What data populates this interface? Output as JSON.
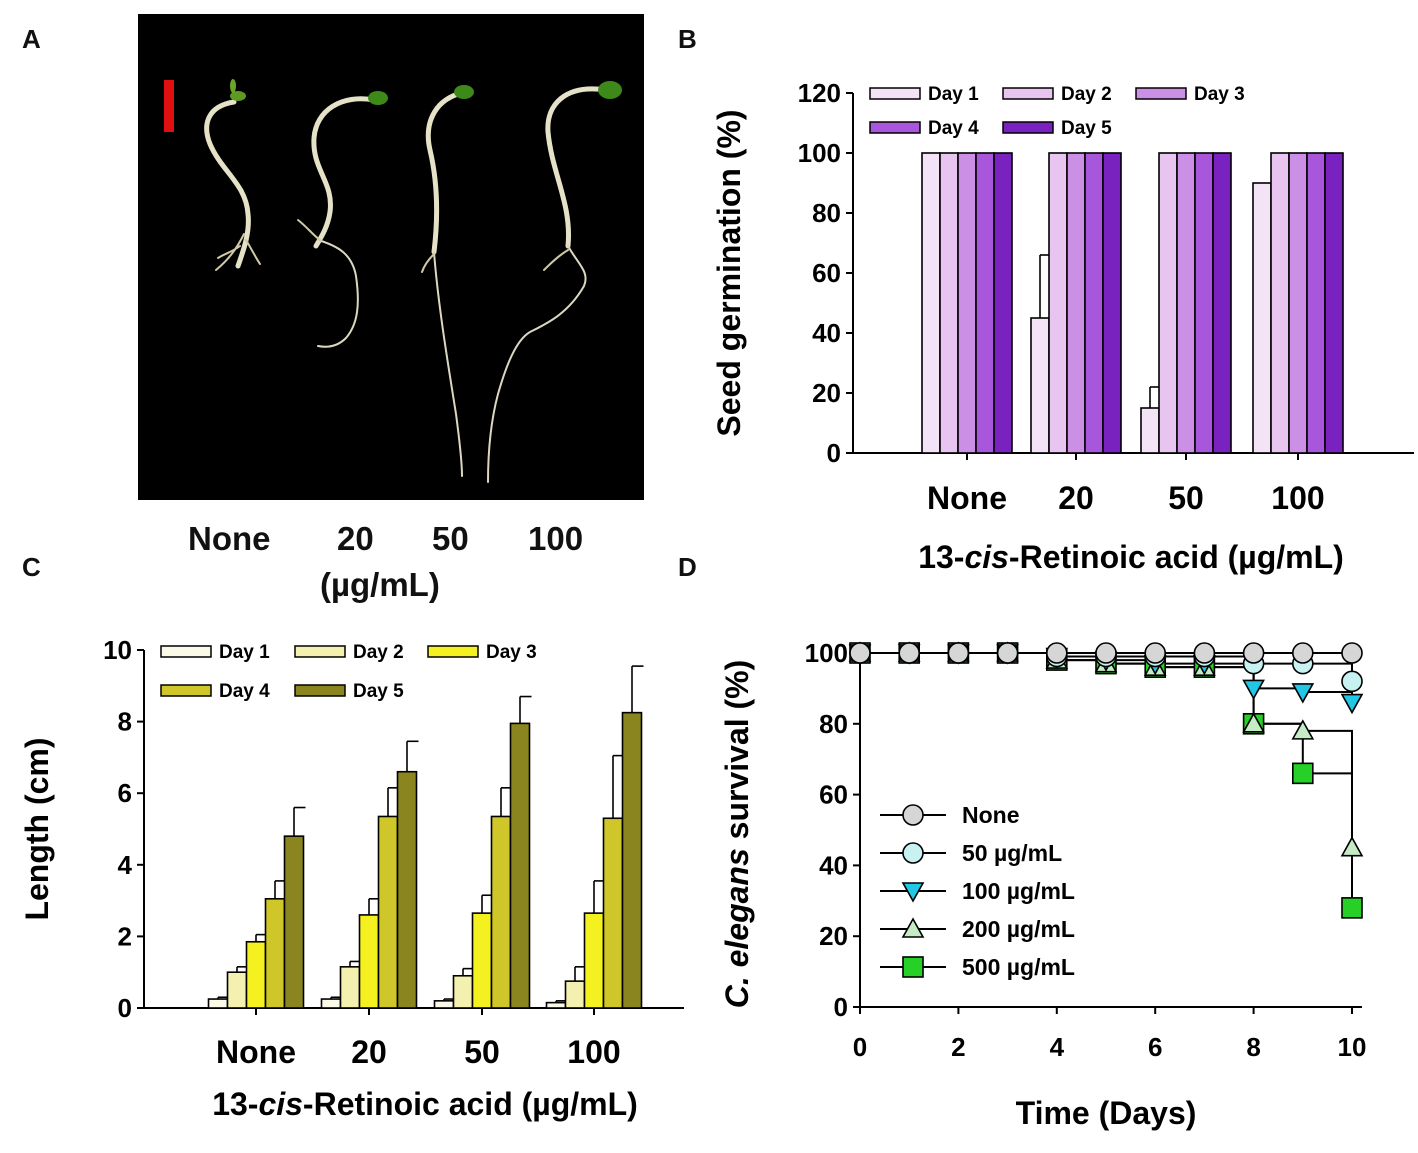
{
  "panels": {
    "A": {
      "letter": "A",
      "labels": [
        "None",
        "20",
        "50",
        "100"
      ],
      "unit": "(µg/mL)",
      "colors": {
        "background": "#000000",
        "scale_bar": "#e01010",
        "stem": "#e6e2c8",
        "leaf": "#4f8f1d"
      }
    },
    "B": {
      "letter": "B"
    },
    "C": {
      "letter": "C"
    },
    "D": {
      "letter": "D"
    }
  },
  "chart_data": [
    {
      "id": "B",
      "type": "bar",
      "ylabel": "Seed germination (%)",
      "xlabel": "13-cis-Retinoic acid (µg/mL)",
      "xlabel_parts": [
        "13-",
        "cis",
        "-Retinoic acid (µg/mL)"
      ],
      "categories": [
        "None",
        "20",
        "50",
        "100"
      ],
      "ylim": [
        0,
        120
      ],
      "yticks": [
        "0",
        "20",
        "40",
        "60",
        "80",
        "100",
        "120"
      ],
      "legend_position": "top-left",
      "series": [
        {
          "name": "Day 1",
          "color": "#f4e3f7",
          "values": [
            100,
            45,
            15,
            90
          ],
          "errors": [
            0,
            21,
            7,
            0
          ]
        },
        {
          "name": "Day 2",
          "color": "#e8c4f0",
          "values": [
            100,
            100,
            100,
            100
          ],
          "errors": [
            0,
            0,
            0,
            0
          ]
        },
        {
          "name": "Day 3",
          "color": "#cc8fe6",
          "values": [
            100,
            100,
            100,
            100
          ],
          "errors": [
            0,
            0,
            0,
            0
          ]
        },
        {
          "name": "Day 4",
          "color": "#a857dc",
          "values": [
            100,
            100,
            100,
            100
          ],
          "errors": [
            0,
            0,
            0,
            0
          ]
        },
        {
          "name": "Day 5",
          "color": "#7a22c0",
          "values": [
            100,
            100,
            100,
            100
          ],
          "errors": [
            0,
            0,
            0,
            0
          ]
        }
      ]
    },
    {
      "id": "C",
      "type": "bar",
      "ylabel": "Length (cm)",
      "xlabel": "13-cis-Retinoic acid (µg/mL)",
      "xlabel_parts": [
        "13-",
        "cis",
        "-Retinoic acid (µg/mL)"
      ],
      "categories": [
        "None",
        "20",
        "50",
        "100"
      ],
      "ylim": [
        0,
        10
      ],
      "yticks": [
        "0",
        "2",
        "4",
        "6",
        "8",
        "10"
      ],
      "legend_position": "top-left",
      "series": [
        {
          "name": "Day 1",
          "color": "#fbfae8",
          "values": [
            0.25,
            0.25,
            0.2,
            0.15
          ],
          "errors": [
            0.05,
            0.05,
            0.05,
            0.05
          ]
        },
        {
          "name": "Day 2",
          "color": "#f4f1b0",
          "values": [
            1.0,
            1.15,
            0.9,
            0.75
          ],
          "errors": [
            0.15,
            0.15,
            0.2,
            0.4
          ]
        },
        {
          "name": "Day 3",
          "color": "#f5f020",
          "values": [
            1.85,
            2.6,
            2.65,
            2.65
          ],
          "errors": [
            0.2,
            0.45,
            0.5,
            0.9
          ]
        },
        {
          "name": "Day 4",
          "color": "#cfc62a",
          "values": [
            3.05,
            5.35,
            5.35,
            5.3
          ],
          "errors": [
            0.5,
            0.8,
            0.8,
            1.75
          ]
        },
        {
          "name": "Day 5",
          "color": "#8a851e",
          "values": [
            4.8,
            6.6,
            7.95,
            8.25
          ],
          "errors": [
            0.8,
            0.85,
            0.75,
            1.3
          ]
        }
      ]
    },
    {
      "id": "D",
      "type": "line",
      "step": true,
      "ylabel_parts": [
        "C. elegans",
        " survival (%)"
      ],
      "ylabel": "C. elegans survival (%)",
      "xlabel": "Time (Days)",
      "x": [
        0,
        1,
        2,
        3,
        4,
        5,
        6,
        7,
        8,
        9,
        10
      ],
      "xlim": [
        0,
        10
      ],
      "ylim": [
        0,
        100
      ],
      "xticks": [
        "0",
        "2",
        "4",
        "6",
        "8",
        "10"
      ],
      "yticks": [
        "0",
        "20",
        "40",
        "60",
        "80",
        "100"
      ],
      "legend_position": "bottom-left",
      "series": [
        {
          "name": "None",
          "marker": "circle",
          "color": "#d6d6d6",
          "values": [
            100,
            100,
            100,
            100,
            100,
            100,
            100,
            100,
            100,
            100,
            100
          ]
        },
        {
          "name": "50 µg/mL",
          "marker": "circle",
          "color": "#c8f2f2",
          "values": [
            100,
            100,
            100,
            100,
            99,
            99,
            99,
            99,
            97,
            97,
            92
          ]
        },
        {
          "name": "100 µg/mL",
          "marker": "triangle-down",
          "color": "#22c7e6",
          "values": [
            100,
            100,
            100,
            100,
            99,
            98,
            97,
            97,
            90,
            89,
            86
          ]
        },
        {
          "name": "200 µg/mL",
          "marker": "triangle-up",
          "color": "#c6ecc6",
          "values": [
            100,
            100,
            100,
            100,
            98,
            97,
            96,
            96,
            80,
            78,
            45
          ]
        },
        {
          "name": "500 µg/mL",
          "marker": "square",
          "color": "#27d027",
          "values": [
            100,
            100,
            100,
            100,
            98,
            97,
            96,
            96,
            80,
            66,
            28
          ]
        }
      ]
    }
  ]
}
